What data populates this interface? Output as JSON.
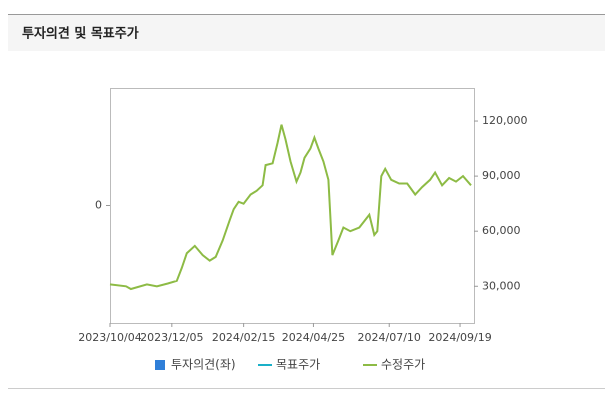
{
  "header": {
    "title": "투자의견 및 목표주가"
  },
  "chart_data": {
    "type": "line",
    "x": [
      "2023/10/04",
      "2023/10/20",
      "2023/10/25",
      "2023/11/10",
      "2023/11/20",
      "2023/12/01",
      "2023/12/10",
      "2023/12/15",
      "2023/12/20",
      "2023/12/28",
      "2024/01/05",
      "2024/01/12",
      "2024/01/18",
      "2024/01/25",
      "2024/02/01",
      "2024/02/05",
      "2024/02/10",
      "2024/02/15",
      "2024/02/22",
      "2024/02/28",
      "2024/03/05",
      "2024/03/08",
      "2024/03/15",
      "2024/03/20",
      "2024/03/24",
      "2024/03/28",
      "2024/04/02",
      "2024/04/08",
      "2024/04/12",
      "2024/04/16",
      "2024/04/22",
      "2024/04/26",
      "2024/04/30",
      "2024/05/05",
      "2024/05/10",
      "2024/05/14",
      "2024/05/20",
      "2024/05/25",
      "2024/06/01",
      "2024/06/10",
      "2024/06/20",
      "2024/06/25",
      "2024/06/28",
      "2024/07/02",
      "2024/07/06",
      "2024/07/12",
      "2024/07/20",
      "2024/07/28",
      "2024/08/05",
      "2024/08/12",
      "2024/08/20",
      "2024/08/25",
      "2024/09/01",
      "2024/09/08",
      "2024/09/15",
      "2024/09/22",
      "2024/09/30"
    ],
    "xlim": [
      "2023/10/04",
      "2024/10/03"
    ],
    "xticks": [
      "2023/10/04",
      "2023/12/05",
      "2024/02/15",
      "2024/04/25",
      "2024/07/10",
      "2024/09/19"
    ],
    "ylim": [
      -1,
      1
    ],
    "yticks": [
      0
    ],
    "y2lim": [
      10000,
      138000
    ],
    "y2ticks": [
      {
        "value": 30000,
        "label": "30,000"
      },
      {
        "value": 60000,
        "label": "60,000"
      },
      {
        "value": 90000,
        "label": "90,000"
      },
      {
        "value": 120000,
        "label": "120,000"
      }
    ],
    "series": [
      {
        "name": "투자의견(좌)",
        "color": "#2f7fd8",
        "values": [
          null,
          null,
          null,
          null,
          null,
          null,
          null,
          null,
          null,
          null,
          null,
          null,
          null,
          null,
          null,
          null,
          null,
          null,
          null,
          null,
          null,
          null,
          null,
          null,
          null,
          null,
          null,
          null,
          null,
          null,
          null,
          null,
          null,
          null,
          null,
          null,
          null,
          null,
          null,
          null,
          null,
          null,
          null,
          null,
          null,
          null,
          null,
          null,
          null,
          null,
          null,
          null,
          null,
          null,
          null,
          null,
          null
        ]
      },
      {
        "name": "목표주가",
        "color": "#1ab0c8",
        "axis": "y2",
        "values": [
          null,
          null,
          null,
          null,
          null,
          null,
          null,
          null,
          null,
          null,
          null,
          null,
          null,
          null,
          null,
          null,
          null,
          null,
          null,
          null,
          null,
          null,
          null,
          null,
          null,
          null,
          null,
          null,
          null,
          null,
          null,
          null,
          null,
          null,
          null,
          null,
          null,
          null,
          null,
          null,
          null,
          null,
          null,
          null,
          null,
          null,
          null,
          null,
          null,
          null,
          null,
          null,
          null,
          null,
          null,
          null,
          null
        ]
      },
      {
        "name": "수정주가",
        "color": "#8dbb45",
        "axis": "y2",
        "values": [
          31000,
          30000,
          28500,
          31000,
          30000,
          31500,
          33000,
          40000,
          48000,
          52000,
          47000,
          44000,
          46000,
          55000,
          66000,
          72000,
          76000,
          75000,
          80000,
          82000,
          85000,
          96000,
          97000,
          108000,
          118000,
          110000,
          98000,
          87000,
          92000,
          100000,
          105000,
          111000,
          105000,
          98000,
          88000,
          47000,
          55000,
          62000,
          60000,
          62000,
          69000,
          58000,
          60000,
          90000,
          94000,
          88000,
          86000,
          86000,
          80000,
          84000,
          88000,
          92000,
          85000,
          89000,
          87000,
          90000,
          85000
        ]
      }
    ]
  }
}
